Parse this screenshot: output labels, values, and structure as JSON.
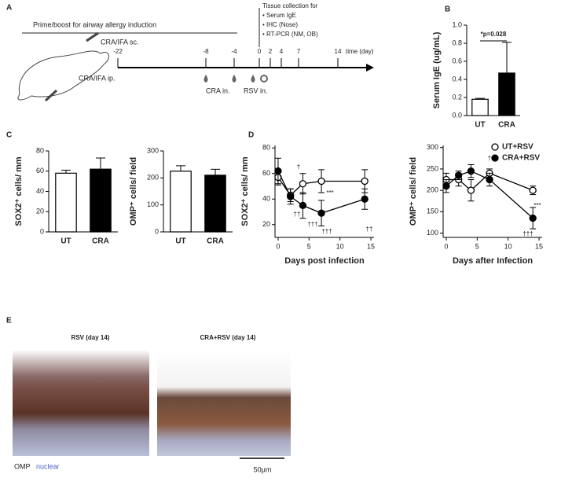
{
  "panel_labels": [
    "A",
    "B",
    "C",
    "D",
    "E"
  ],
  "panel_a": {
    "prime_boost": "Prime/boost for airway allergy induction",
    "sc": "CRA/IFA sc.",
    "ip": "CRA/IFA ip.",
    "days": [
      "-22",
      "-8",
      "-4",
      "0",
      "2",
      "4",
      "7",
      "14"
    ],
    "time_label": "time (day)",
    "tissue": [
      "Tissue collection for",
      "• Serum IgE",
      "• IHC (Nose)",
      "• RT-PCR (NM, OB)"
    ],
    "cra_in": "CRA in.",
    "rsv_in": "RSV in."
  },
  "panel_e": {
    "left_title": "RSV (day 14)",
    "right_title": "CRA+RSV (day 14)",
    "stain_omp": "OMP",
    "stain_nuclear": "nuclear",
    "scale": "50μm"
  },
  "chart_data": [
    {
      "type": "bar",
      "ylabel": "Serum IgE (ug/mL)",
      "categories": [
        "UT",
        "CRA"
      ],
      "values": [
        0.18,
        0.47
      ],
      "errors": [
        0.01,
        0.34
      ],
      "colors": [
        "#ffffff",
        "#000000"
      ],
      "ylim": [
        0,
        1.0
      ],
      "yticks": [
        {
          "value": 0,
          "label": "0.0"
        },
        0.2,
        0.4,
        0.6,
        0.8,
        {
          "value": 1,
          "label": "1.0"
        }
      ],
      "annotation": "*p=0.028"
    },
    {
      "type": "bar",
      "ylabel": "SOX2⁺ cells/ mm",
      "categories": [
        "UT",
        "CRA"
      ],
      "values": [
        58,
        62
      ],
      "errors": [
        3,
        11
      ],
      "colors": [
        "#ffffff",
        "#000000"
      ],
      "ylim": [
        0,
        80
      ],
      "yticks": [
        0,
        20,
        40,
        60,
        80
      ]
    },
    {
      "type": "bar",
      "ylabel": "OMP⁺ cells/ field",
      "categories": [
        "UT",
        "CRA"
      ],
      "values": [
        225,
        210
      ],
      "errors": [
        20,
        22
      ],
      "colors": [
        "#ffffff",
        "#000000"
      ],
      "ylim": [
        0,
        300
      ],
      "yticks": [
        0,
        100,
        200,
        300
      ]
    },
    {
      "type": "line",
      "xlabel": "Days post infection",
      "ylabel": "SOX2⁺ cells/ mm",
      "xlim": [
        -0.5,
        15.5
      ],
      "xticks": [
        0,
        5,
        10,
        15
      ],
      "ylim": [
        10,
        82
      ],
      "yticks": [
        20,
        40,
        60,
        80
      ],
      "series": [
        {
          "name": "UT+RSV",
          "color": "#ffffff",
          "x": [
            0,
            2,
            4,
            7,
            14
          ],
          "values": [
            57,
            43,
            52,
            54,
            54
          ],
          "errors": [
            6,
            5,
            8,
            9,
            9
          ]
        },
        {
          "name": "CRA+RSV",
          "color": "#000000",
          "x": [
            0,
            2,
            4,
            7,
            14
          ],
          "values": [
            62,
            42,
            35,
            29,
            40
          ],
          "errors": [
            10,
            6,
            10,
            10,
            8
          ]
        }
      ],
      "annotations": [
        "†",
        "††",
        "†††",
        "***",
        "†††",
        "††"
      ]
    },
    {
      "type": "line",
      "xlabel": "Days after Infection",
      "ylabel": "OMP⁺ cells/ field",
      "xlim": [
        -0.5,
        15.5
      ],
      "xticks": [
        0,
        5,
        10,
        15
      ],
      "ylim": [
        90,
        305
      ],
      "yticks": [
        100,
        150,
        200,
        250,
        300
      ],
      "legend": "upper right",
      "series": [
        {
          "name": "UT+RSV",
          "color": "#ffffff",
          "x": [
            0,
            2,
            4,
            7,
            14
          ],
          "values": [
            225,
            225,
            200,
            240,
            200
          ],
          "errors": [
            15,
            15,
            25,
            10,
            10
          ]
        },
        {
          "name": "CRA+RSV",
          "color": "#000000",
          "x": [
            0,
            2,
            4,
            7,
            14
          ],
          "values": [
            210,
            235,
            245,
            225,
            135
          ],
          "errors": [
            15,
            10,
            15,
            15,
            25
          ]
        }
      ],
      "annotations": [
        "†",
        "***",
        "†††"
      ]
    }
  ]
}
